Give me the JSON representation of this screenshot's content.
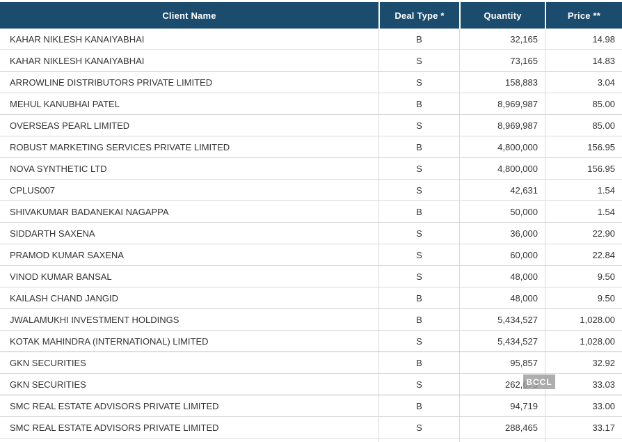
{
  "table": {
    "columns": {
      "client": "Client Name",
      "deal_type": "Deal Type *",
      "quantity": "Quantity",
      "price": "Price **"
    },
    "rows": [
      {
        "client": "KAHAR NIKLESH KANAIYABHAI",
        "deal_type": "B",
        "quantity": "32,165",
        "price": "14.98"
      },
      {
        "client": "KAHAR NIKLESH KANAIYABHAI",
        "deal_type": "S",
        "quantity": "73,165",
        "price": "14.83"
      },
      {
        "client": "ARROWLINE DISTRIBUTORS PRIVATE LIMITED",
        "deal_type": "S",
        "quantity": "158,883",
        "price": "3.04"
      },
      {
        "client": "MEHUL KANUBHAI PATEL",
        "deal_type": "B",
        "quantity": "8,969,987",
        "price": "85.00"
      },
      {
        "client": "OVERSEAS PEARL LIMITED",
        "deal_type": "S",
        "quantity": "8,969,987",
        "price": "85.00"
      },
      {
        "client": "ROBUST MARKETING SERVICES PRIVATE LIMITED",
        "deal_type": "B",
        "quantity": "4,800,000",
        "price": "156.95"
      },
      {
        "client": "NOVA SYNTHETIC LTD",
        "deal_type": "S",
        "quantity": "4,800,000",
        "price": "156.95"
      },
      {
        "client": "CPLUS007",
        "deal_type": "S",
        "quantity": "42,631",
        "price": "1.54"
      },
      {
        "client": "SHIVAKUMAR BADANEKAI NAGAPPA",
        "deal_type": "B",
        "quantity": "50,000",
        "price": "1.54"
      },
      {
        "client": "SIDDARTH SAXENA",
        "deal_type": "S",
        "quantity": "36,000",
        "price": "22.90"
      },
      {
        "client": "PRAMOD KUMAR SAXENA",
        "deal_type": "S",
        "quantity": "60,000",
        "price": "22.84"
      },
      {
        "client": "VINOD KUMAR BANSAL",
        "deal_type": "S",
        "quantity": "48,000",
        "price": "9.50"
      },
      {
        "client": "KAILASH CHAND JANGID",
        "deal_type": "B",
        "quantity": "48,000",
        "price": "9.50"
      },
      {
        "client": "JWALAMUKHI INVESTMENT HOLDINGS",
        "deal_type": "B",
        "quantity": "5,434,527",
        "price": "1,028.00"
      },
      {
        "client": "KOTAK MAHINDRA (INTERNATIONAL) LIMITED",
        "deal_type": "S",
        "quantity": "5,434,527",
        "price": "1,028.00"
      },
      {
        "client": "GKN SECURITIES",
        "deal_type": "B",
        "quantity": "95,857",
        "price": "32.92"
      },
      {
        "client": "GKN SECURITIES",
        "deal_type": "S",
        "quantity": "262,673",
        "price": "33.03"
      },
      {
        "client": "SMC REAL ESTATE ADVISORS PRIVATE LIMITED",
        "deal_type": "B",
        "quantity": "94,719",
        "price": "33.00"
      },
      {
        "client": "SMC REAL ESTATE ADVISORS PRIVATE LIMITED",
        "deal_type": "S",
        "quantity": "288,465",
        "price": "33.17"
      }
    ]
  },
  "watermark": {
    "label": "BCCL"
  },
  "colors": {
    "header_bg": "#1B4C6D",
    "header_text": "#FFFFFF",
    "body_text": "#333333",
    "row_border": "#D9D9D9",
    "row_border_dark": "#BDBDBD",
    "watermark_text": "#FFFFFF"
  }
}
